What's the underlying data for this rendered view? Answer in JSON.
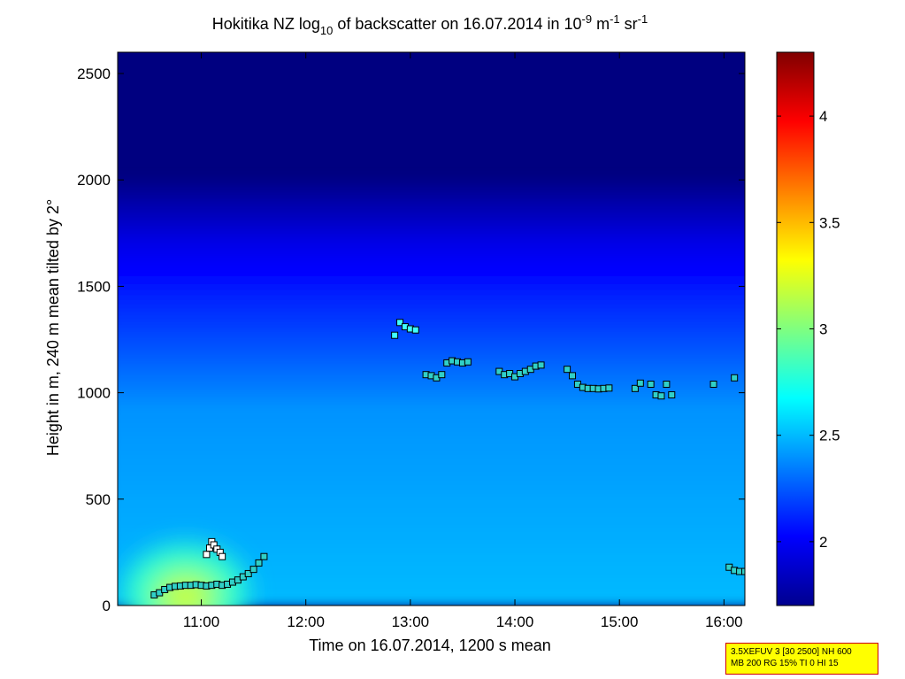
{
  "chart_data": {
    "type": "heatmap",
    "title": {
      "main": "Hokitika NZ log",
      "sub1": "10",
      "mid": " of backscatter on 16.07.2014 in 10",
      "sup1": "-9",
      "unit1": " m",
      "sup2": "-1",
      "unit2": " sr",
      "sup3": "-1"
    },
    "xlabel": "Time on 16.07.2014, 1200 s mean",
    "ylabel": "Height in m, 240 m mean tilted by 2°",
    "xlim": [
      10.2,
      16.2
    ],
    "ylim": [
      0,
      2600
    ],
    "x_ticks": [
      {
        "value": 11,
        "label": "11:00"
      },
      {
        "value": 12,
        "label": "12:00"
      },
      {
        "value": 13,
        "label": "13:00"
      },
      {
        "value": 14,
        "label": "14:00"
      },
      {
        "value": 15,
        "label": "15:00"
      },
      {
        "value": 16,
        "label": "16:00"
      }
    ],
    "y_ticks": [
      {
        "value": 0,
        "label": "0"
      },
      {
        "value": 500,
        "label": "500"
      },
      {
        "value": 1000,
        "label": "1000"
      },
      {
        "value": 1500,
        "label": "1500"
      },
      {
        "value": 2000,
        "label": "2000"
      },
      {
        "value": 2500,
        "label": "2500"
      }
    ],
    "colorbar": {
      "range": [
        1.7,
        4.3
      ],
      "colormap": "jet",
      "ticks": [
        {
          "value": 2,
          "label": "2"
        },
        {
          "value": 2.5,
          "label": "2.5"
        },
        {
          "value": 3,
          "label": "3"
        },
        {
          "value": 3.5,
          "label": "3.5"
        },
        {
          "value": 4,
          "label": "4"
        }
      ]
    },
    "field_description": {
      "background_level": 1.7,
      "mid_level": 2.4,
      "surface_level": 2.5,
      "plume_center": [
        10.85,
        60
      ],
      "plume_peak": 3.2
    },
    "layer_height_markers": [
      {
        "group": "low",
        "points": [
          [
            10.55,
            50
          ],
          [
            10.6,
            60
          ],
          [
            10.65,
            75
          ],
          [
            10.7,
            85
          ],
          [
            10.75,
            90
          ],
          [
            10.8,
            92
          ],
          [
            10.85,
            95
          ],
          [
            10.9,
            95
          ],
          [
            10.95,
            98
          ],
          [
            11.0,
            95
          ],
          [
            11.05,
            92
          ],
          [
            11.1,
            95
          ],
          [
            11.15,
            100
          ],
          [
            11.2,
            95
          ],
          [
            11.25,
            100
          ],
          [
            11.3,
            110
          ],
          [
            11.35,
            120
          ],
          [
            11.4,
            135
          ],
          [
            11.45,
            150
          ],
          [
            11.5,
            170
          ],
          [
            11.55,
            200
          ],
          [
            11.6,
            230
          ]
        ]
      },
      {
        "group": "upper",
        "points": [
          [
            11.05,
            240
          ],
          [
            11.08,
            270
          ],
          [
            11.1,
            300
          ],
          [
            11.12,
            285
          ],
          [
            11.15,
            265
          ],
          [
            11.18,
            250
          ],
          [
            11.2,
            230
          ]
        ]
      },
      {
        "group": "high",
        "points": [
          [
            12.85,
            1270
          ],
          [
            12.9,
            1330
          ],
          [
            12.95,
            1310
          ],
          [
            13.0,
            1300
          ],
          [
            13.05,
            1295
          ],
          [
            13.15,
            1085
          ],
          [
            13.2,
            1080
          ],
          [
            13.25,
            1070
          ],
          [
            13.3,
            1085
          ],
          [
            13.35,
            1140
          ],
          [
            13.4,
            1150
          ],
          [
            13.45,
            1145
          ],
          [
            13.5,
            1140
          ],
          [
            13.55,
            1145
          ],
          [
            13.85,
            1100
          ],
          [
            13.9,
            1085
          ],
          [
            13.95,
            1090
          ],
          [
            14.0,
            1075
          ],
          [
            14.05,
            1090
          ],
          [
            14.1,
            1100
          ],
          [
            14.15,
            1110
          ],
          [
            14.2,
            1125
          ],
          [
            14.25,
            1130
          ],
          [
            14.5,
            1110
          ],
          [
            14.55,
            1080
          ],
          [
            14.6,
            1040
          ],
          [
            14.65,
            1025
          ],
          [
            14.7,
            1020
          ],
          [
            14.75,
            1020
          ],
          [
            14.8,
            1018
          ],
          [
            14.85,
            1020
          ],
          [
            14.9,
            1022
          ],
          [
            15.15,
            1020
          ],
          [
            15.2,
            1045
          ],
          [
            15.3,
            1040
          ],
          [
            15.35,
            990
          ],
          [
            15.4,
            985
          ],
          [
            15.45,
            1040
          ],
          [
            15.5,
            990
          ],
          [
            15.9,
            1040
          ],
          [
            16.1,
            1070
          ]
        ]
      },
      {
        "group": "late-low",
        "points": [
          [
            16.05,
            180
          ],
          [
            16.1,
            165
          ],
          [
            16.15,
            160
          ],
          [
            16.2,
            160
          ]
        ]
      }
    ]
  },
  "info_box": {
    "line1": "3.5XEFUV 3 [30 2500] NH 600",
    "line2": "MB 200 RG 15% TI 0 HI 15"
  }
}
